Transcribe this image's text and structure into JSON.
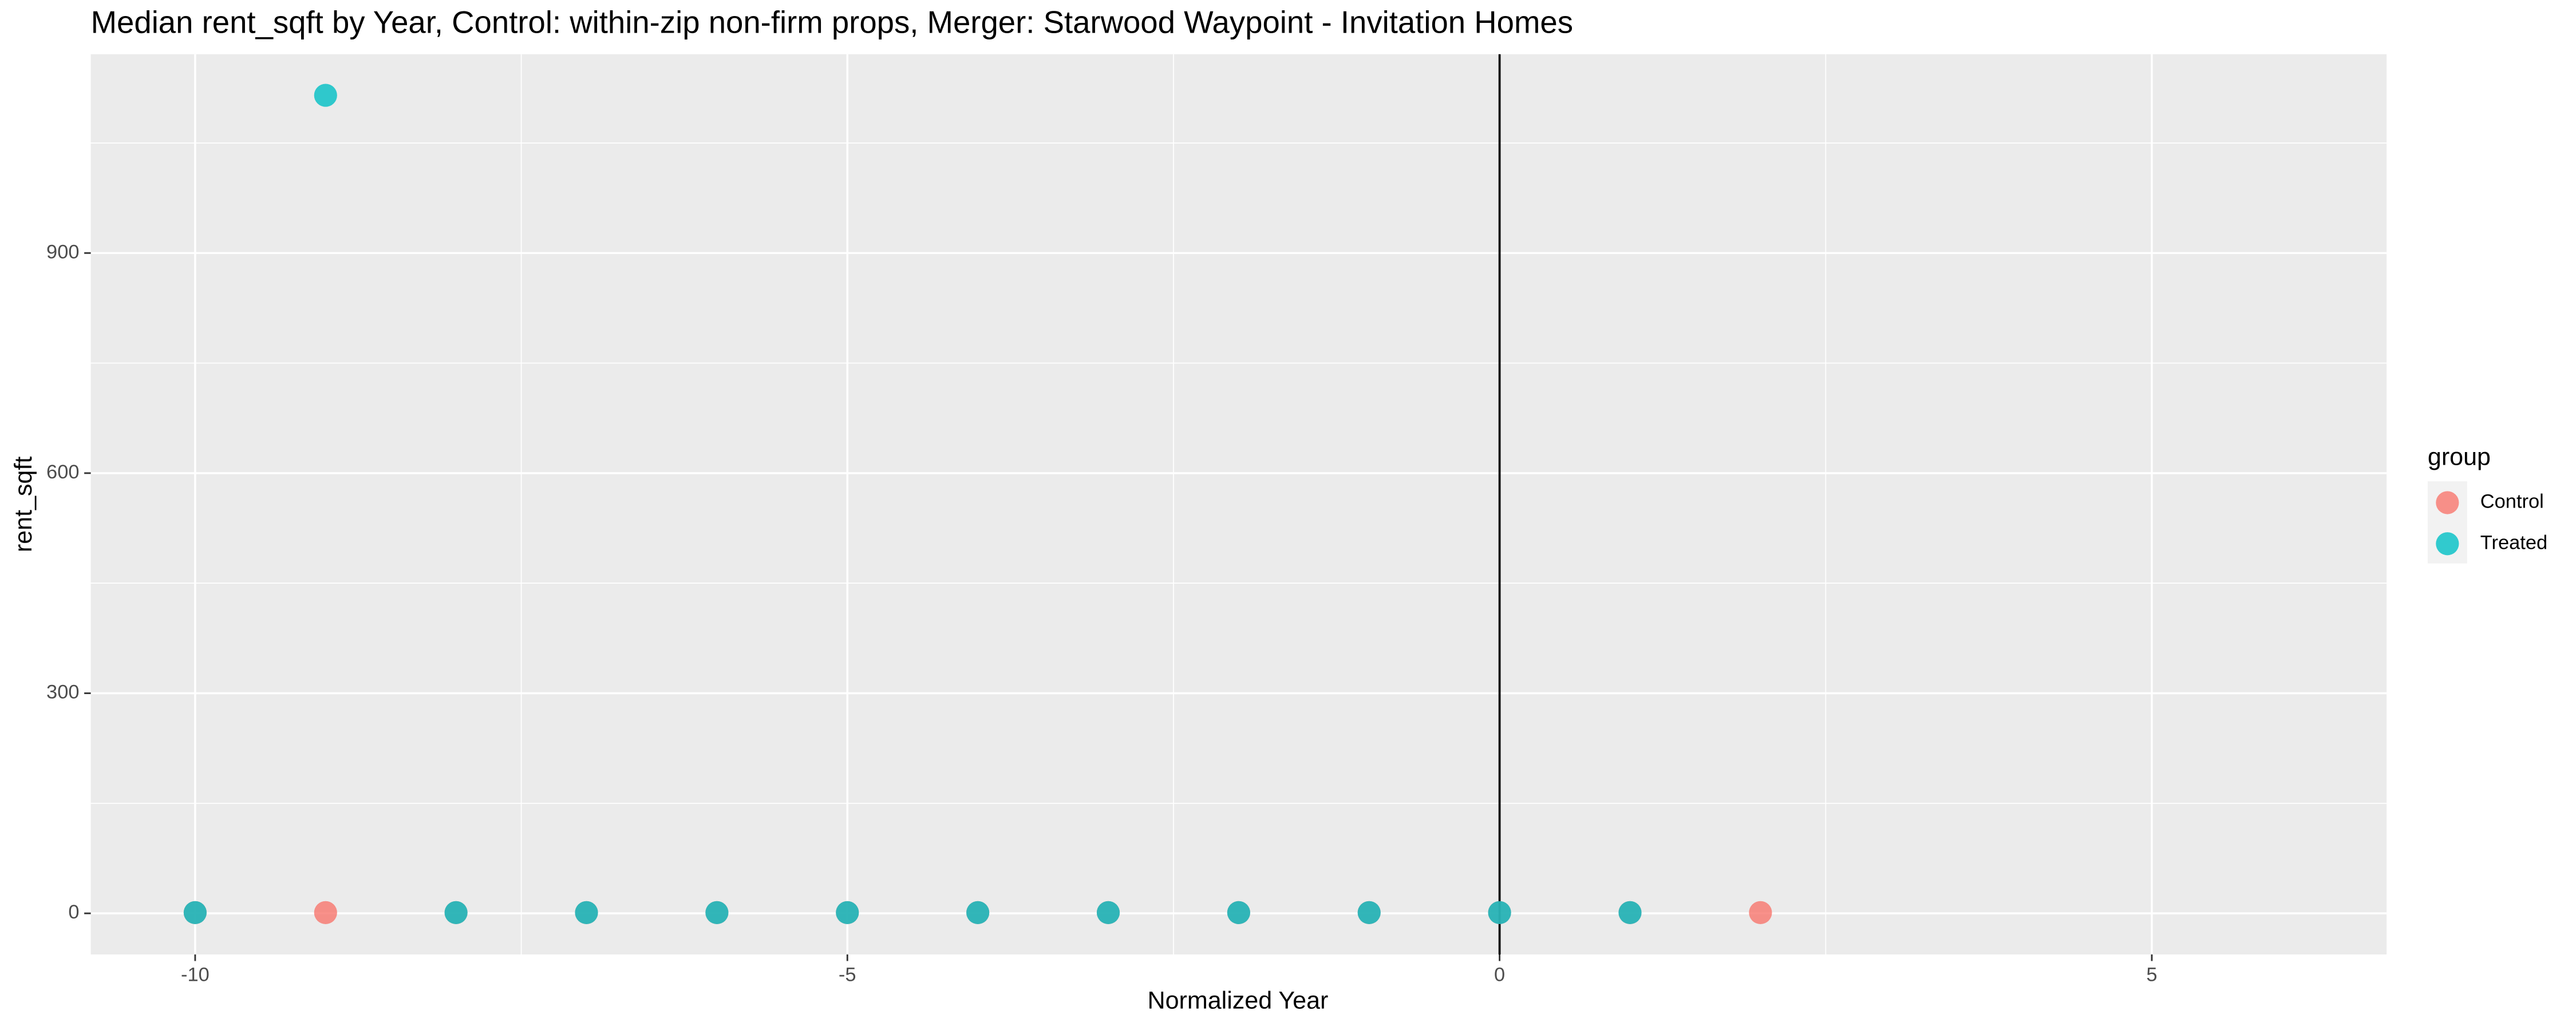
{
  "chart_data": {
    "type": "scatter",
    "title": "Median rent_sqft by Year, Control: within-zip non-firm props, Merger: Starwood Waypoint - Invitation Homes",
    "x_label": "Normalized Year",
    "y_label": "rent_sqft",
    "legend_title": "group",
    "xlim": [
      -10.8,
      6.8
    ],
    "ylim": [
      -56,
      1171
    ],
    "xticks": [
      -10,
      -5,
      0,
      5
    ],
    "yticks": [
      0,
      300,
      600,
      900
    ],
    "x_minor_grid": [
      -7.5,
      -2.5,
      2.5
    ],
    "y_minor_grid": [
      150,
      450,
      750,
      1050
    ],
    "grid": true,
    "vline": 0,
    "legend_position": "right",
    "series": [
      {
        "name": "Control",
        "color": "#F8766D",
        "x": [
          -10,
          -9,
          -8,
          -7,
          -6,
          -5,
          -4,
          -3,
          -2,
          -1,
          0,
          1,
          2
        ],
        "values": [
          1,
          1,
          1,
          1,
          1,
          1,
          1,
          1,
          1,
          1,
          1,
          1,
          1
        ]
      },
      {
        "name": "Treated",
        "color": "#00BFC4",
        "x": [
          -10,
          -9,
          -8,
          -7,
          -6,
          -5,
          -4,
          -3,
          -2,
          -1,
          0,
          1
        ],
        "values": [
          1,
          1115,
          1,
          1,
          1,
          1,
          1,
          1,
          1,
          1,
          1,
          1
        ]
      }
    ]
  }
}
